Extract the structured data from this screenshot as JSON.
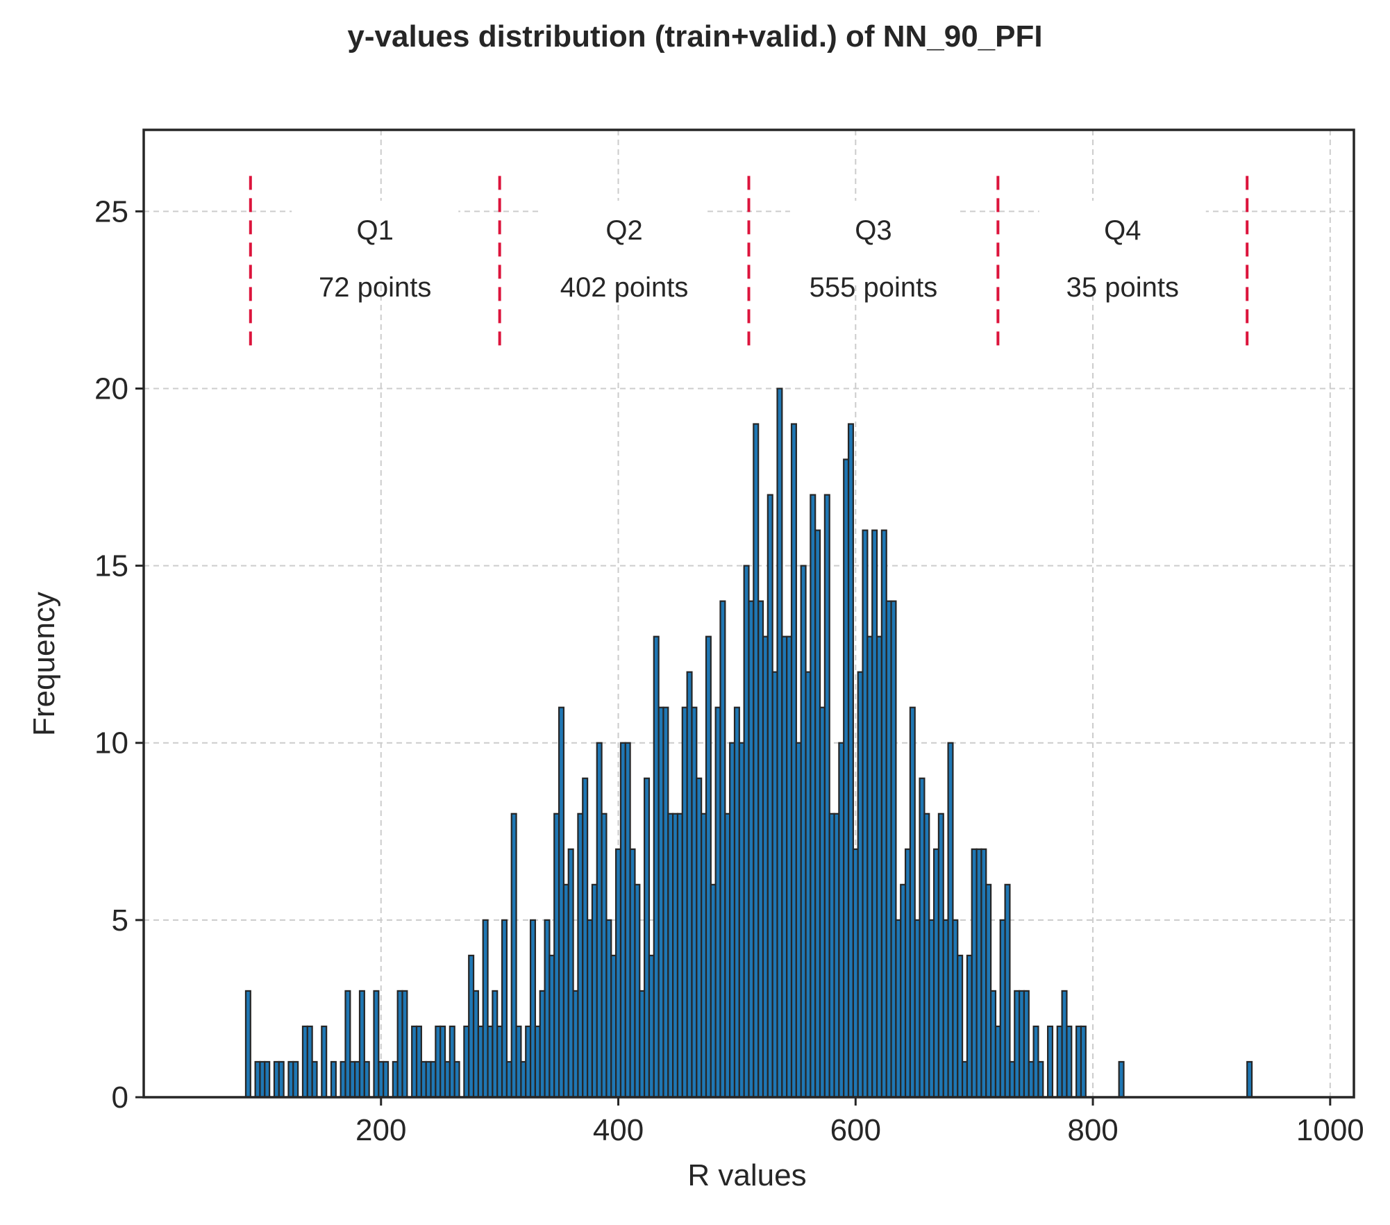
{
  "chart_data": {
    "type": "bar",
    "title": "y-values distribution (train+valid.) of NN_90_PFI",
    "xlabel": "R values",
    "ylabel": "Frequency",
    "xlim": [
      0,
      1020
    ],
    "ylim": [
      0,
      27.3
    ],
    "grid": true,
    "x_ticks": [
      200,
      400,
      600,
      800,
      1000
    ],
    "y_ticks": [
      0,
      5,
      10,
      15,
      20,
      25
    ],
    "bar_color": "#1f77b4",
    "edge_color": "#262626",
    "divider_color": "#dc143c",
    "bin_start": 86,
    "bin_width": 4.23,
    "values": [
      3,
      0,
      0,
      1,
      1,
      1,
      1,
      0,
      1,
      1,
      1,
      0,
      1,
      1,
      1,
      0,
      1,
      2,
      2,
      2,
      0,
      1,
      1,
      2,
      0,
      1,
      1,
      1,
      1,
      3,
      1,
      1,
      3,
      1,
      1,
      3,
      1,
      0,
      1,
      3,
      1,
      1,
      1,
      0,
      1,
      1,
      3,
      3,
      3,
      0,
      0,
      2,
      2,
      2,
      2,
      1,
      1,
      1,
      1,
      2,
      2,
      0,
      2,
      2,
      1,
      0,
      0,
      2,
      2,
      4,
      3,
      3,
      2,
      5,
      2,
      2,
      4,
      1,
      2,
      3,
      5,
      1,
      0,
      1,
      8,
      2,
      1,
      1,
      2,
      2,
      2,
      5,
      2,
      3,
      3,
      5,
      5,
      4,
      8,
      11,
      6,
      3,
      7,
      7,
      4,
      8,
      9,
      5,
      5,
      6,
      3,
      7,
      4,
      2,
      0,
      0,
      0,
      0,
      0,
      0,
      0,
      0,
      0,
      0,
      0,
      0,
      0,
      0,
      0,
      0,
      0,
      0,
      0,
      0,
      0,
      0,
      0,
      0,
      0,
      0,
      0,
      0,
      0,
      0,
      0,
      0,
      0,
      0,
      0,
      0,
      0,
      0,
      0,
      0,
      0,
      0,
      0,
      0,
      0,
      0,
      0,
      0,
      0,
      0,
      0,
      0,
      0,
      0,
      0,
      0,
      0,
      0,
      0,
      0,
      0,
      0,
      0,
      0,
      0,
      0,
      0,
      0,
      0,
      0,
      0,
      0,
      0,
      0,
      0,
      0,
      0,
      0,
      0,
      0,
      0,
      0,
      0,
      0,
      0,
      0,
      0,
      0,
      0,
      0,
      0,
      0,
      0,
      0,
      0,
      0,
      0,
      0
    ],
    "bars": [
      [
        86,
        3
      ],
      [
        94,
        1
      ],
      [
        98,
        1
      ],
      [
        102,
        1
      ],
      [
        110,
        1
      ],
      [
        114,
        1
      ],
      [
        122,
        1
      ],
      [
        126,
        1
      ],
      [
        134,
        2
      ],
      [
        138,
        2
      ],
      [
        142,
        1
      ],
      [
        150,
        2
      ],
      [
        158,
        1
      ],
      [
        166,
        1
      ],
      [
        170,
        3
      ],
      [
        174,
        1
      ],
      [
        178,
        1
      ],
      [
        182,
        3
      ],
      [
        186,
        1
      ],
      [
        194,
        3
      ],
      [
        198,
        1
      ],
      [
        202,
        1
      ],
      [
        210,
        1
      ],
      [
        214,
        3
      ],
      [
        218,
        3
      ],
      [
        226,
        2
      ],
      [
        230,
        2
      ],
      [
        234,
        1
      ],
      [
        238,
        1
      ],
      [
        242,
        1
      ],
      [
        246,
        2
      ],
      [
        250,
        2
      ],
      [
        254,
        1
      ],
      [
        258,
        2
      ],
      [
        262,
        1
      ],
      [
        270,
        2
      ],
      [
        274,
        4
      ],
      [
        278,
        3
      ],
      [
        282,
        2
      ],
      [
        286,
        5
      ],
      [
        290,
        2
      ],
      [
        294,
        3
      ],
      [
        298,
        2
      ],
      [
        302,
        5
      ],
      [
        306,
        1
      ],
      [
        310,
        8
      ],
      [
        314,
        2
      ],
      [
        318,
        1
      ],
      [
        322,
        2
      ],
      [
        326,
        5
      ],
      [
        330,
        2
      ],
      [
        334,
        3
      ],
      [
        338,
        5
      ],
      [
        342,
        4
      ],
      [
        346,
        8
      ],
      [
        350,
        11
      ],
      [
        354,
        6
      ],
      [
        358,
        7
      ],
      [
        362,
        3
      ],
      [
        366,
        8
      ],
      [
        370,
        9
      ],
      [
        374,
        5
      ],
      [
        378,
        6
      ],
      [
        382,
        10
      ],
      [
        386,
        8
      ],
      [
        390,
        5
      ],
      [
        394,
        4
      ],
      [
        398,
        7
      ],
      [
        402,
        10
      ],
      [
        406,
        10
      ],
      [
        410,
        7
      ],
      [
        414,
        6
      ],
      [
        418,
        3
      ],
      [
        422,
        9
      ],
      [
        426,
        4
      ],
      [
        430,
        13
      ],
      [
        434,
        11
      ],
      [
        438,
        11
      ],
      [
        442,
        8
      ],
      [
        446,
        8
      ],
      [
        450,
        8
      ],
      [
        454,
        11
      ],
      [
        458,
        12
      ],
      [
        462,
        11
      ],
      [
        466,
        9
      ],
      [
        470,
        8
      ],
      [
        474,
        13
      ],
      [
        478,
        6
      ],
      [
        482,
        11
      ],
      [
        486,
        14
      ],
      [
        490,
        8
      ],
      [
        494,
        10
      ],
      [
        498,
        11
      ],
      [
        502,
        10
      ],
      [
        506,
        15
      ],
      [
        510,
        14
      ],
      [
        514,
        19
      ],
      [
        518,
        14
      ],
      [
        522,
        13
      ],
      [
        526,
        17
      ],
      [
        530,
        12
      ],
      [
        534,
        20
      ],
      [
        538,
        13
      ],
      [
        542,
        13
      ],
      [
        546,
        19
      ],
      [
        550,
        10
      ],
      [
        554,
        15
      ],
      [
        558,
        12
      ],
      [
        562,
        17
      ],
      [
        566,
        16
      ],
      [
        570,
        11
      ],
      [
        574,
        17
      ],
      [
        578,
        8
      ],
      [
        582,
        8
      ],
      [
        586,
        10
      ],
      [
        590,
        18
      ],
      [
        594,
        19
      ],
      [
        598,
        7
      ],
      [
        602,
        12
      ],
      [
        606,
        16
      ],
      [
        610,
        13
      ],
      [
        614,
        16
      ],
      [
        618,
        13
      ],
      [
        622,
        16
      ],
      [
        626,
        14
      ],
      [
        630,
        14
      ],
      [
        634,
        5
      ],
      [
        638,
        6
      ],
      [
        642,
        7
      ],
      [
        646,
        11
      ],
      [
        650,
        5
      ],
      [
        654,
        9
      ],
      [
        658,
        8
      ],
      [
        662,
        5
      ],
      [
        666,
        7
      ],
      [
        670,
        8
      ],
      [
        674,
        5
      ],
      [
        678,
        10
      ],
      [
        682,
        5
      ],
      [
        686,
        4
      ],
      [
        690,
        1
      ],
      [
        694,
        4
      ],
      [
        698,
        7
      ],
      [
        702,
        7
      ],
      [
        706,
        7
      ],
      [
        710,
        6
      ],
      [
        714,
        3
      ],
      [
        718,
        2
      ],
      [
        722,
        5
      ],
      [
        726,
        6
      ],
      [
        730,
        1
      ],
      [
        734,
        3
      ],
      [
        738,
        3
      ],
      [
        742,
        3
      ],
      [
        746,
        1
      ],
      [
        750,
        2
      ],
      [
        754,
        1
      ],
      [
        762,
        2
      ],
      [
        770,
        2
      ],
      [
        774,
        3
      ],
      [
        778,
        2
      ],
      [
        782,
        0
      ],
      [
        786,
        2
      ],
      [
        790,
        2
      ],
      [
        806,
        0
      ],
      [
        822,
        1
      ],
      [
        930,
        1
      ]
    ],
    "quantile_dividers": [
      90,
      300,
      510,
      720,
      930
    ],
    "annotations": [
      {
        "label": "Q1",
        "count": "72 points"
      },
      {
        "label": "Q2",
        "count": "402 points"
      },
      {
        "label": "Q3",
        "count": "555 points"
      },
      {
        "label": "Q4",
        "count": "35 points"
      }
    ]
  }
}
